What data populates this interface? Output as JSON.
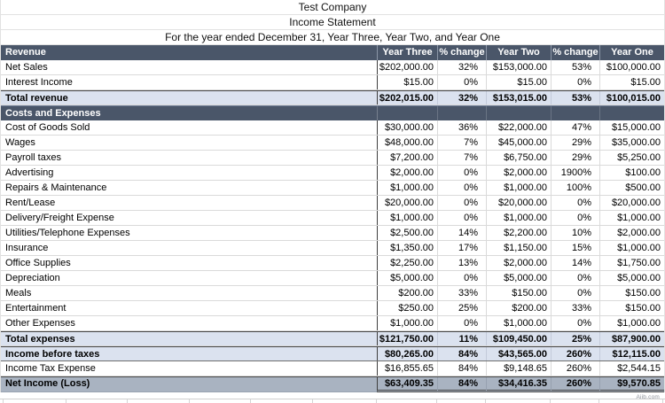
{
  "titles": {
    "company": "Test Company",
    "statement": "Income Statement",
    "period": "For the year ended December 31, Year Three, Year Two, and Year One"
  },
  "table": {
    "headers": [
      "Revenue",
      "Year Three",
      "% change",
      "Year Two",
      "% change",
      "Year One"
    ],
    "rows": [
      {
        "type": "data",
        "label": "Net Sales",
        "cells": [
          "$202,000.00",
          "32%",
          "$153,000.00",
          "53%",
          "$100,000.00"
        ]
      },
      {
        "type": "data",
        "label": "Interest Income",
        "cells": [
          "$15.00",
          "0%",
          "$15.00",
          "0%",
          "$15.00"
        ]
      },
      {
        "type": "total",
        "label": "Total revenue",
        "cells": [
          "$202,015.00",
          "32%",
          "$153,015.00",
          "53%",
          "$100,015.00"
        ]
      },
      {
        "type": "section",
        "label": "Costs and Expenses",
        "cells": [
          "",
          "",
          "",
          "",
          ""
        ]
      },
      {
        "type": "data",
        "label": "Cost of Goods Sold",
        "cells": [
          "$30,000.00",
          "36%",
          "$22,000.00",
          "47%",
          "$15,000.00"
        ]
      },
      {
        "type": "data",
        "label": "Wages",
        "cells": [
          "$48,000.00",
          "7%",
          "$45,000.00",
          "29%",
          "$35,000.00"
        ]
      },
      {
        "type": "data",
        "label": "Payroll taxes",
        "cells": [
          "$7,200.00",
          "7%",
          "$6,750.00",
          "29%",
          "$5,250.00"
        ]
      },
      {
        "type": "data",
        "label": "Advertising",
        "cells": [
          "$2,000.00",
          "0%",
          "$2,000.00",
          "1900%",
          "$100.00"
        ]
      },
      {
        "type": "data",
        "label": "Repairs & Maintenance",
        "cells": [
          "$1,000.00",
          "0%",
          "$1,000.00",
          "100%",
          "$500.00"
        ]
      },
      {
        "type": "data",
        "label": "Rent/Lease",
        "cells": [
          "$20,000.00",
          "0%",
          "$20,000.00",
          "0%",
          "$20,000.00"
        ]
      },
      {
        "type": "data",
        "label": "Delivery/Freight Expense",
        "cells": [
          "$1,000.00",
          "0%",
          "$1,000.00",
          "0%",
          "$1,000.00"
        ]
      },
      {
        "type": "data",
        "label": "Utilities/Telephone Expenses",
        "cells": [
          "$2,500.00",
          "14%",
          "$2,200.00",
          "10%",
          "$2,000.00"
        ]
      },
      {
        "type": "data",
        "label": "Insurance",
        "cells": [
          "$1,350.00",
          "17%",
          "$1,150.00",
          "15%",
          "$1,000.00"
        ]
      },
      {
        "type": "data",
        "label": "Office Supplies",
        "cells": [
          "$2,250.00",
          "13%",
          "$2,000.00",
          "14%",
          "$1,750.00"
        ]
      },
      {
        "type": "data",
        "label": "Depreciation",
        "cells": [
          "$5,000.00",
          "0%",
          "$5,000.00",
          "0%",
          "$5,000.00"
        ]
      },
      {
        "type": "data",
        "label": "Meals",
        "cells": [
          "$200.00",
          "33%",
          "$150.00",
          "0%",
          "$150.00"
        ]
      },
      {
        "type": "data",
        "label": "Entertainment",
        "cells": [
          "$250.00",
          "25%",
          "$200.00",
          "33%",
          "$150.00"
        ]
      },
      {
        "type": "data",
        "label": "Other Expenses",
        "cells": [
          "$1,000.00",
          "0%",
          "$1,000.00",
          "0%",
          "$1,000.00"
        ]
      },
      {
        "type": "total",
        "label": "Total expenses",
        "cells": [
          "$121,750.00",
          "11%",
          "$109,450.00",
          "25%",
          "$87,900.00"
        ]
      },
      {
        "type": "total rule-bottom",
        "label": "Income before taxes",
        "cells": [
          "$80,265.00",
          "84%",
          "$43,565.00",
          "260%",
          "$12,115.00"
        ]
      },
      {
        "type": "data",
        "label": "Income Tax Expense",
        "cells": [
          "$16,855.65",
          "84%",
          "$9,148.65",
          "260%",
          "$2,544.15"
        ]
      },
      {
        "type": "net",
        "label": "Net Income (Loss)",
        "cells": [
          "$63,409.35",
          "84%",
          "$34,416.35",
          "260%",
          "$9,570.85"
        ]
      }
    ]
  },
  "watermark": "Aiib.com",
  "colors": {
    "header_bg": "#4a5669",
    "total_bg": "#dbe2ef",
    "net_income_bg": "#a9b3c1"
  }
}
